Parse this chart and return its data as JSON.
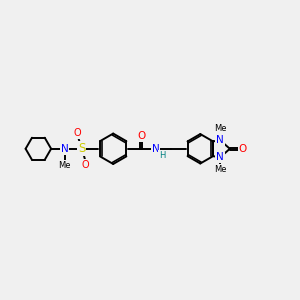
{
  "bg_color": "#f0f0f0",
  "bond_color": "#000000",
  "bond_width": 1.4,
  "atom_colors": {
    "O": "#ff0000",
    "N": "#0000ff",
    "S": "#cccc00",
    "H": "#008080",
    "C": "#000000"
  },
  "font_size": 6.5,
  "fig_size": [
    3.0,
    3.0
  ],
  "dpi": 100,
  "xlim": [
    0,
    12
  ],
  "ylim": [
    2,
    8
  ]
}
